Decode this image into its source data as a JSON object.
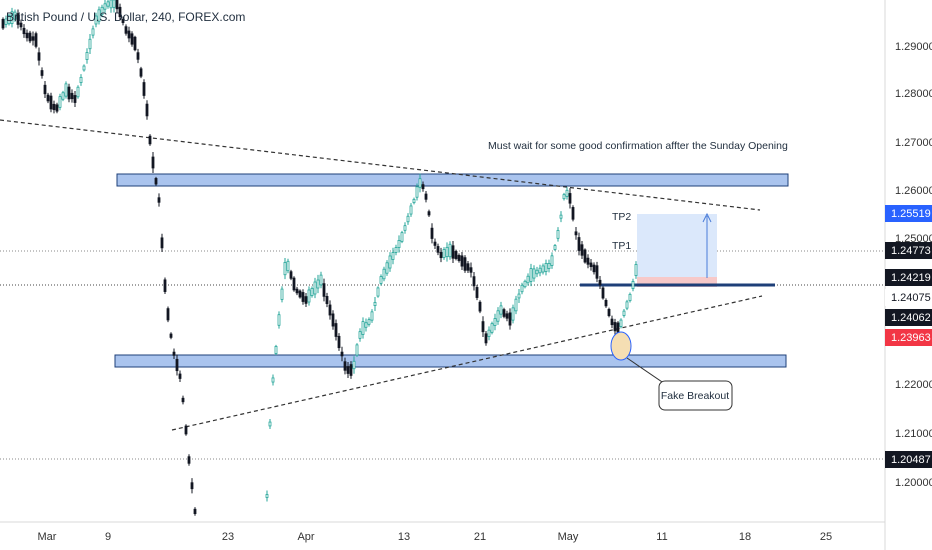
{
  "chart_data": {
    "type": "candlestick",
    "symbol": "British Pound / U.S. Dollar, 240, FOREX.com",
    "x_ticks": [
      "Mar",
      "9",
      "23",
      "Apr",
      "13",
      "21",
      "May",
      "11",
      "18",
      "25"
    ],
    "y_ticks": [
      "1.29000",
      "1.28000",
      "1.27000",
      "1.26000",
      "1.25000",
      "1.22000",
      "1.21000",
      "1.20000"
    ],
    "price_labels": [
      {
        "value": "1.25519",
        "bg": "#2962ff",
        "fg": "#ffffff"
      },
      {
        "value": "1.24773",
        "bg": "#131722",
        "fg": "#ffffff"
      },
      {
        "value": "1.24219",
        "bg": "#131722",
        "fg": "#ffffff"
      },
      {
        "value": "1.24075",
        "bg": "#ffffff",
        "fg": "#131722"
      },
      {
        "value": "1.24062",
        "bg": "#131722",
        "fg": "#ffffff"
      },
      {
        "value": "1.23963",
        "bg": "#f23645",
        "fg": "#ffffff"
      },
      {
        "value": "1.20487",
        "bg": "#131722",
        "fg": "#ffffff"
      }
    ],
    "zones": [
      {
        "name": "resistance-zone",
        "low": 1.259,
        "high": 1.2625
      },
      {
        "name": "support-zone",
        "low": 1.2253,
        "high": 1.2285
      }
    ],
    "annotations": {
      "note": "Must wait for some good confirmation affter the Sunday Opening",
      "tp2": "TP2",
      "tp1": "TP1",
      "callout": "Fake Breakout"
    },
    "colors": {
      "up": "#26a69a",
      "down": "#131722",
      "zone_fill": "#aac4ee",
      "zone_stroke": "#1e3f78",
      "target_fill": "#dbe8fb",
      "stop_fill": "#f7c9c9",
      "highlight": "#f5deb3"
    },
    "grid": false
  }
}
